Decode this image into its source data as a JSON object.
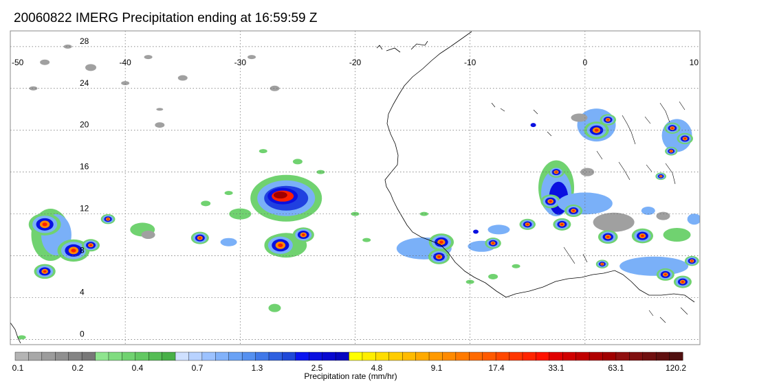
{
  "title": "20060822 IMERG Precipitation ending at 16:59:59 Z",
  "map": {
    "lon_ticks": [
      "-50",
      "-40",
      "-30",
      "-20",
      "-10",
      "0",
      "10"
    ],
    "lat_ticks": [
      "28",
      "24",
      "20",
      "16",
      "12",
      "8",
      "4",
      "0"
    ],
    "extent": {
      "lon_min": -50,
      "lon_max": 10,
      "lat_min": -0.5,
      "lat_max": 29.5
    },
    "gridlines": "dotted",
    "coastline_color": "#000000"
  },
  "colorbar": {
    "label": "Precipitation rate (mm/hr)",
    "tick_labels": [
      "0.1",
      "0.2",
      "0.4",
      "0.7",
      "1.3",
      "2.5",
      "4.8",
      "9.1",
      "17.4",
      "33.1",
      "63.1",
      "120.2"
    ],
    "colors": [
      "#b4b4b4",
      "#a8a8a8",
      "#9c9c9c",
      "#909090",
      "#848484",
      "#787878",
      "#8fe58f",
      "#80dc80",
      "#70d270",
      "#62c862",
      "#55bd55",
      "#48b048",
      "#cfe0ff",
      "#b8d2ff",
      "#9cc2ff",
      "#82b2fa",
      "#6aa2f5",
      "#5590f0",
      "#4078e8",
      "#2e60e0",
      "#1f48d8",
      "#0a14f0",
      "#0a10e0",
      "#0808d0",
      "#0606c0",
      "#ffff00",
      "#ffee00",
      "#ffdd00",
      "#ffcc00",
      "#ffbb00",
      "#ffaa00",
      "#ff9a00",
      "#ff8a00",
      "#ff7a00",
      "#ff6a00",
      "#ff5a00",
      "#ff4800",
      "#ff3600",
      "#ff2400",
      "#ff1200",
      "#e00000",
      "#d00000",
      "#c00000",
      "#b00000",
      "#a00000",
      "#901010",
      "#801010",
      "#701010",
      "#601010",
      "#501010"
    ]
  },
  "precip_scale_colors": {
    "gray": "#a0a0a0",
    "green": "#70d270",
    "light_blue": "#7ab0f8",
    "blue": "#2040e0",
    "dark_blue": "#0a10e0",
    "yellow": "#ffdd00",
    "orange": "#ff8a00",
    "red": "#ff2000",
    "dark_red": "#a00000"
  }
}
